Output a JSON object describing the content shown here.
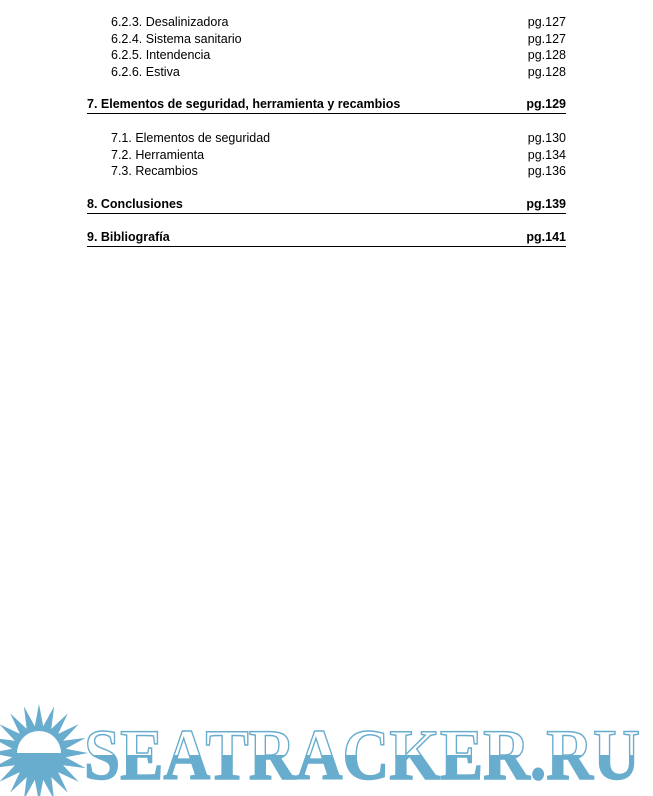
{
  "toc": {
    "entries": [
      {
        "label": "6.2.3. Desalinizadora",
        "page": "pg.127",
        "level": 3
      },
      {
        "label": "6.2.4. Sistema sanitario",
        "page": "pg.127",
        "level": 3
      },
      {
        "label": "6.2.5. Intendencia",
        "page": "pg.128",
        "level": 3
      },
      {
        "label": "6.2.6. Estiva",
        "page": "pg.128",
        "level": 3
      },
      {
        "label": "7. Elementos de seguridad, herramienta y recambios",
        "page": "pg.129",
        "level": 1
      },
      {
        "label": "7.1. Elementos de seguridad",
        "page": "pg.130",
        "level": 2
      },
      {
        "label": "7.2. Herramienta",
        "page": "pg.134",
        "level": 2
      },
      {
        "label": "7.3. Recambios",
        "page": "pg.136",
        "level": 2
      },
      {
        "label": "8. Conclusiones",
        "page": "pg.139",
        "level": 1
      },
      {
        "label": "9. Bibliografía",
        "page": "pg.141",
        "level": 1
      }
    ]
  },
  "watermark": {
    "text": "SEATRACKER.RU",
    "color": "#68acce"
  }
}
